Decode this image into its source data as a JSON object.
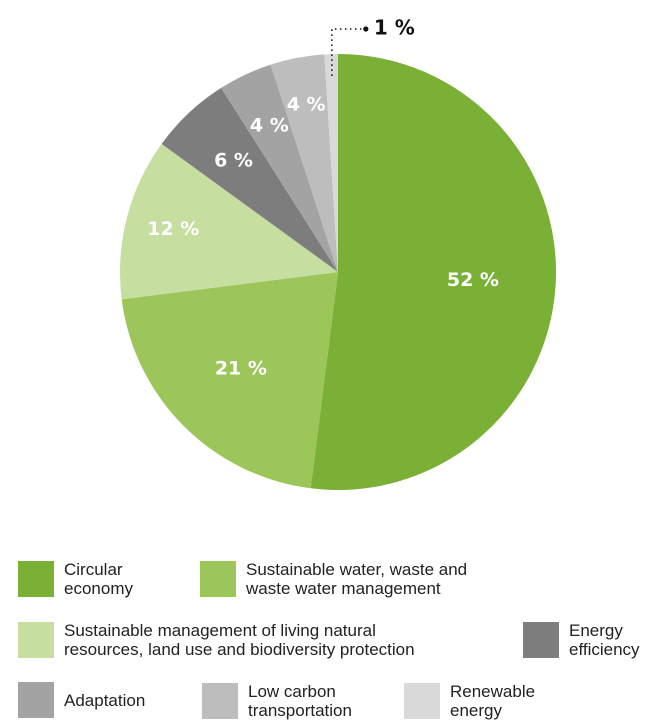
{
  "chart_data": {
    "type": "pie",
    "slices": [
      {
        "label": "Circular economy",
        "value": 52,
        "display": "52 %",
        "color": "#7ab035"
      },
      {
        "label": "Sustainable water, waste and waste water management",
        "value": 21,
        "display": "21 %",
        "color": "#9cc659"
      },
      {
        "label": "Sustainable management of living natural resources, land use and biodiversity protection",
        "value": 12,
        "display": "12 %",
        "color": "#c6dea0"
      },
      {
        "label": "Energy efficiency",
        "value": 6,
        "display": "6 %",
        "color": "#7d7d7d"
      },
      {
        "label": "Adaptation",
        "value": 4,
        "display": "4 %",
        "color": "#a3a3a3"
      },
      {
        "label": "Low carbon transportation",
        "value": 4,
        "display": "4 %",
        "color": "#bdbdbd"
      },
      {
        "label": "Renewable energy",
        "value": 1,
        "display": "1 %",
        "color": "#d9d9d9"
      }
    ],
    "legend_placement": "bottom"
  },
  "legend": [
    {
      "text": "Circular\neconomy",
      "color": "#7ab035"
    },
    {
      "text": "Sustainable water, waste and\nwaste water management",
      "color": "#9cc659"
    },
    {
      "text": "Sustainable management of living natural\nresources, land use and biodiversity protection",
      "color": "#c6dea0"
    },
    {
      "text": "Energy\nefficiency",
      "color": "#7d7d7d"
    },
    {
      "text": "Adaptation",
      "color": "#a3a3a3"
    },
    {
      "text": "Low carbon\ntransportation",
      "color": "#bdbdbd"
    },
    {
      "text": "Renewable\nenergy",
      "color": "#d9d9d9"
    }
  ]
}
